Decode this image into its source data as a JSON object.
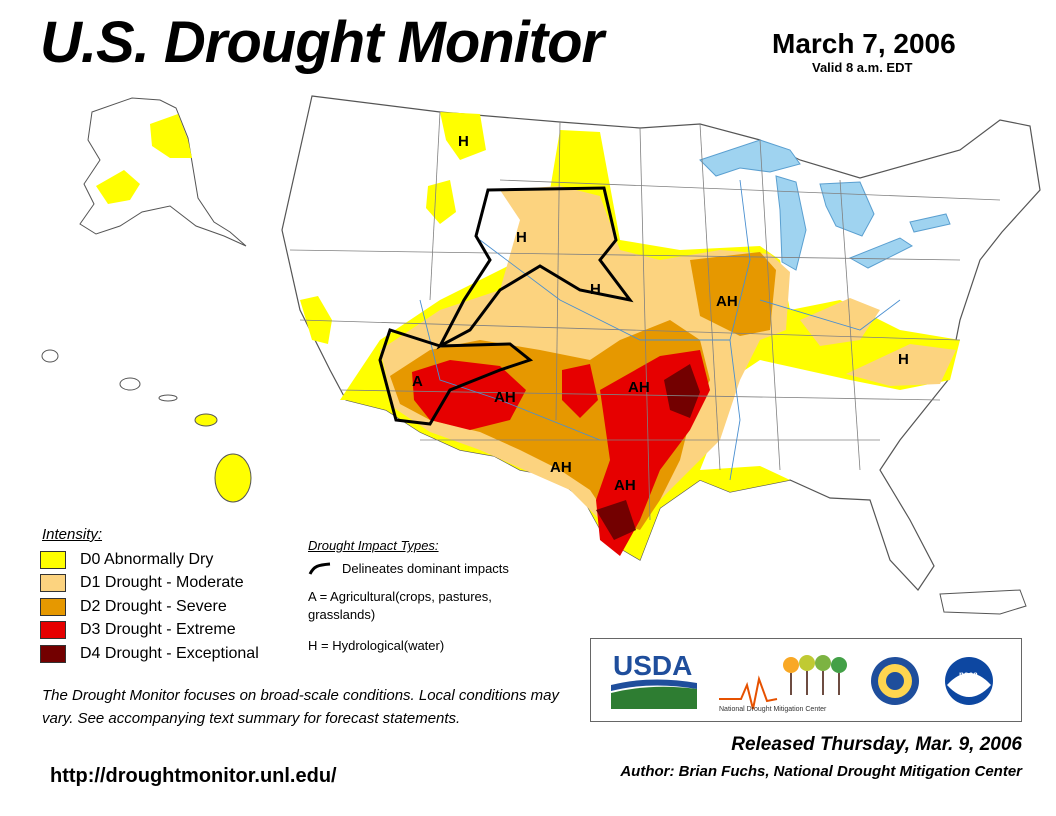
{
  "header": {
    "title": "U.S. Drought Monitor",
    "date": "March 7, 2006",
    "valid": "Valid 8 a.m. EDT"
  },
  "map": {
    "region_labels": [
      "H",
      "H",
      "H",
      "AH",
      "H",
      "A",
      "AH",
      "AH",
      "AH",
      "AH"
    ]
  },
  "legend": {
    "title": "Intensity:",
    "items": [
      {
        "label": "D0 Abnormally Dry",
        "color": "#ffff00"
      },
      {
        "label": "D1 Drought - Moderate",
        "color": "#fcd37f"
      },
      {
        "label": "D2 Drought - Severe",
        "color": "#e69800"
      },
      {
        "label": "D3 Drought - Extreme",
        "color": "#e60000"
      },
      {
        "label": "D4 Drought - Exceptional",
        "color": "#730000"
      }
    ]
  },
  "impact": {
    "title": "Drought Impact Types:",
    "delineates": "Delineates dominant impacts",
    "agricultural": "A = Agricultural(crops, pastures, grasslands)",
    "hydrological": "H = Hydrological(water)"
  },
  "note": "The Drought Monitor focuses on broad-scale conditions. Local conditions may vary. See accompanying text summary for forecast statements.",
  "url": "http://droughtmonitor.unl.edu/",
  "logos": {
    "usda": "USDA",
    "ndmc": "National Drought Mitigation Center",
    "noaa": "noaa"
  },
  "footer": {
    "released": "Released Thursday, Mar. 9, 2006",
    "author": "Author: Brian Fuchs, National Drought Mitigation Center"
  },
  "colors": {
    "water": "#9fd3f0",
    "border": "#7f7f7f",
    "river": "#4a8fd0"
  }
}
